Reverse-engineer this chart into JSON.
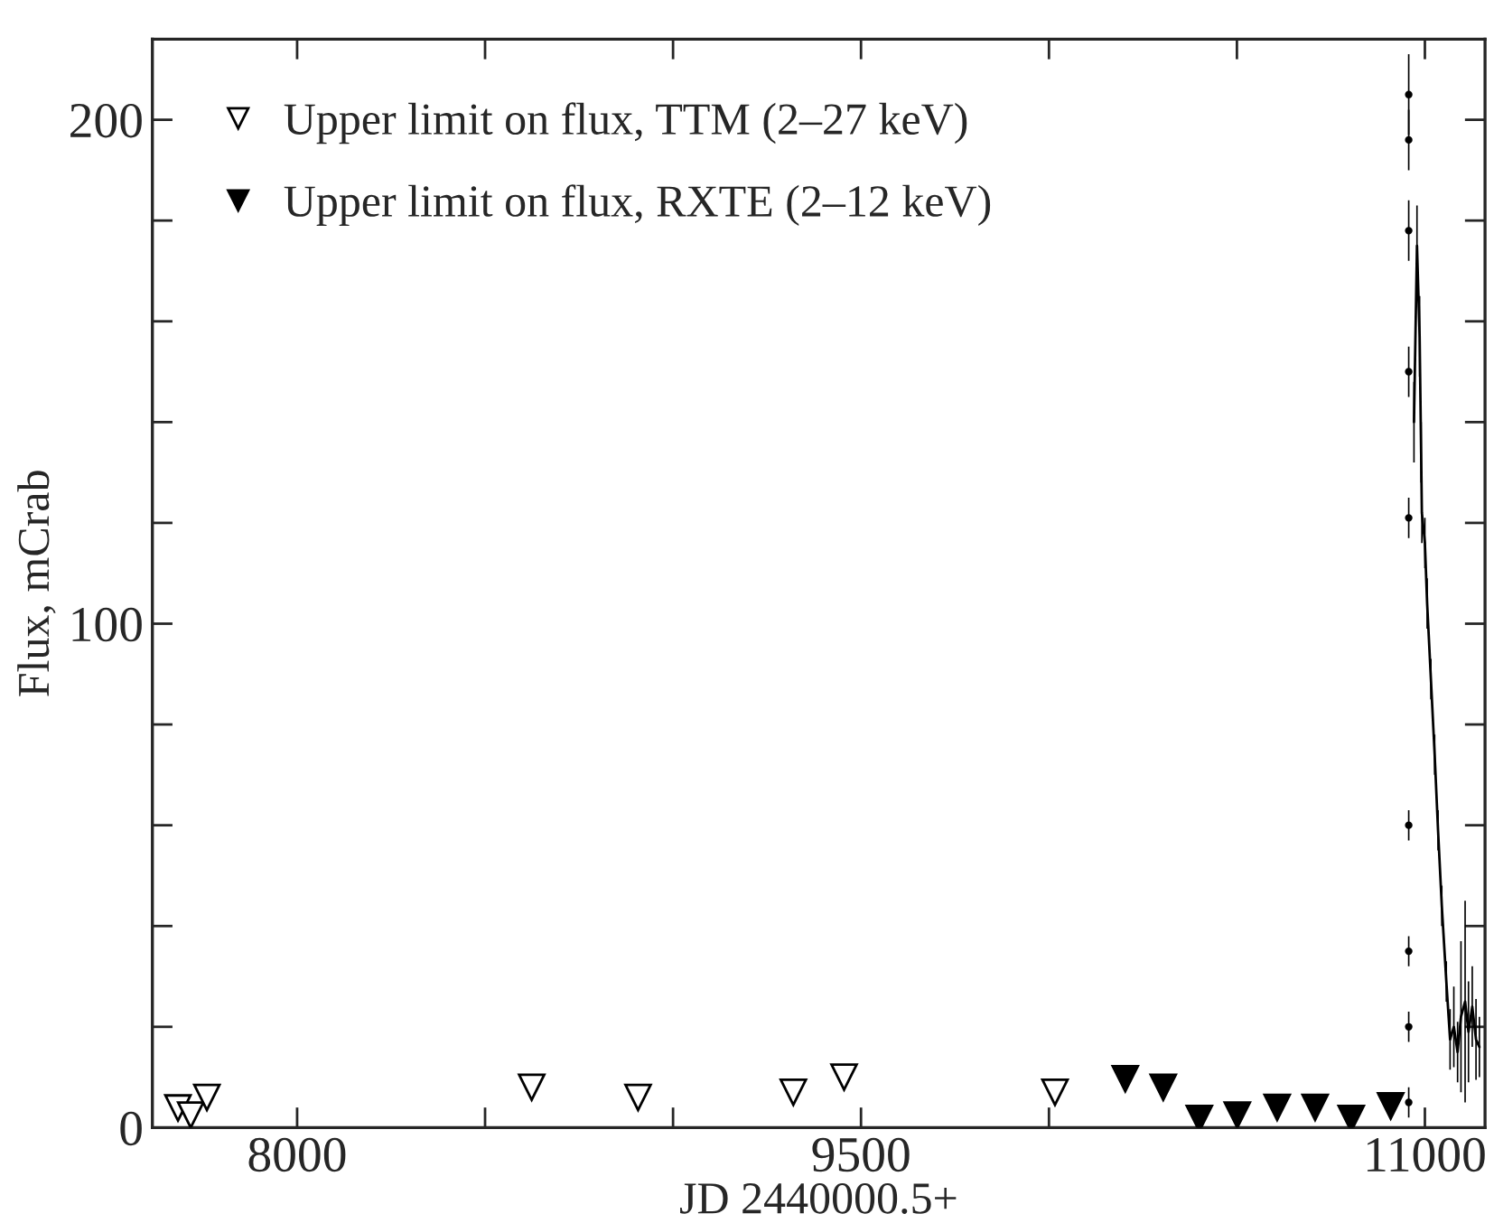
{
  "chart_data": {
    "type": "scatter",
    "xlabel": "JD 2440000.5+",
    "ylabel": "Flux, mCrab",
    "xlim": [
      7615,
      11160
    ],
    "xticks": [
      8000,
      {
        "value": 8500,
        "label": null
      },
      {
        "value": 9000,
        "label": null
      },
      9500,
      {
        "value": 10000,
        "label": null
      },
      {
        "value": 10500,
        "label": null
      },
      11000
    ],
    "ylim": [
      0,
      216
    ],
    "yticks": [
      0,
      {
        "value": 20,
        "label": null
      },
      {
        "value": 40,
        "label": null
      },
      {
        "value": 60,
        "label": null
      },
      {
        "value": 80,
        "label": null
      },
      100,
      {
        "value": 120,
        "label": null
      },
      {
        "value": 140,
        "label": null
      },
      {
        "value": 160,
        "label": null
      },
      {
        "value": 180,
        "label": null
      },
      200
    ],
    "legend": "top left",
    "grid": false,
    "series": [
      {
        "name": "Upper limit on flux, TTM (2–27 keV)",
        "marker": "triangle",
        "color": "#ffffff",
        "x": [
          7683,
          7717,
          7760,
          8624,
          8907,
          9320,
          9455,
          10016
        ],
        "values": [
          3.9,
          2.5,
          6,
          8,
          6,
          7,
          10,
          7
        ]
      },
      {
        "name": "Upper limit on flux, RXTE (2–12 keV)",
        "marker": "triangle",
        "color": "#000000",
        "x": [
          10203,
          10304,
          10400,
          10501,
          10607,
          10708,
          10804,
          10909
        ],
        "values": [
          9.7,
          8,
          1.8,
          2.5,
          4,
          4,
          1.8,
          4.3
        ]
      },
      {
        "marker": "circle",
        "color": "#000000",
        "x": [
          10957,
          10957,
          10957,
          10957,
          10957,
          10957,
          10957,
          10957,
          10957
        ],
        "values": [
          205,
          196,
          178,
          150,
          121,
          60,
          35,
          20,
          5
        ],
        "errors": [
          8,
          6,
          6,
          5,
          4,
          3,
          3,
          3,
          3
        ]
      },
      {
        "type": "line",
        "marker": "none",
        "line_style": "solid",
        "color": "#000000",
        "x": [
          10971,
          10979,
          10986,
          10990,
          10992,
          11000,
          11006,
          11016,
          11026,
          11035,
          11045,
          11057,
          11067,
          11077,
          11087,
          11096,
          11107,
          11116,
          11126,
          11136,
          11145
        ],
        "values": [
          140,
          175,
          157,
          134,
          122,
          116,
          104,
          89,
          74,
          59,
          44,
          29,
          17.5,
          20,
          15,
          22,
          25,
          19,
          24,
          17.5,
          16
        ],
        "errors": [
          8,
          8,
          8,
          6,
          6,
          5,
          5,
          4,
          4,
          4,
          4,
          4,
          6,
          8,
          6,
          15,
          20,
          10,
          8,
          8,
          6
        ]
      }
    ]
  }
}
